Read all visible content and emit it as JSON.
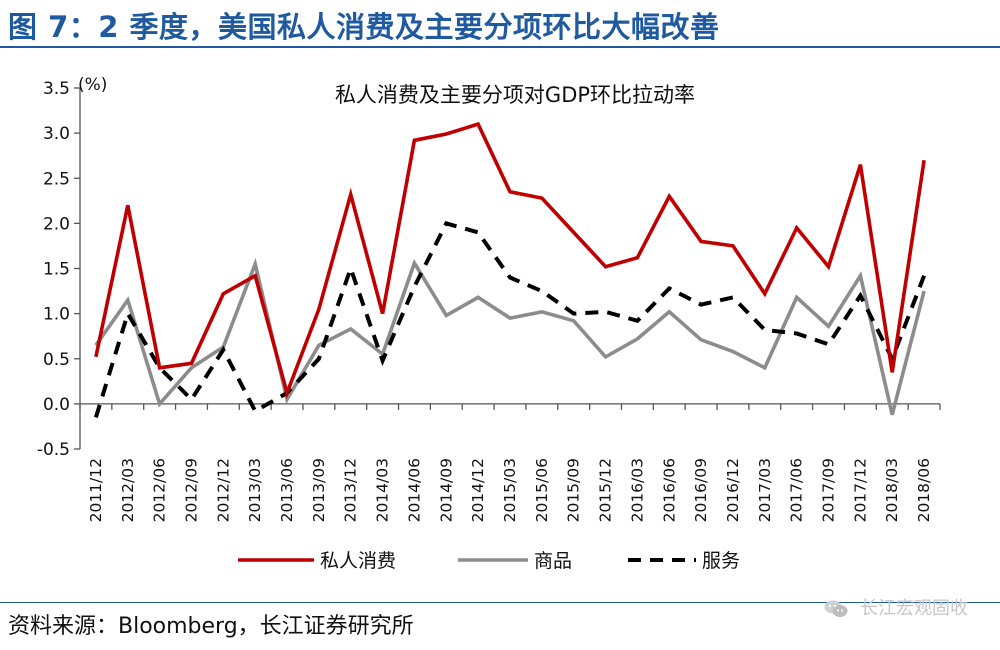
{
  "header": {
    "title": "图 7：2 季度，美国私人消费及主要分项环比大幅改善"
  },
  "footer": {
    "source": "资料来源：Bloomberg，长江证券研究所",
    "watermark": "长江宏观固收"
  },
  "colors": {
    "brand": "#1f5aa0",
    "consumption": "#c00000",
    "goods": "#8c8c8c",
    "services": "#000000"
  },
  "chart_data": {
    "type": "line",
    "title": "私人消费及主要分项对GDP环比拉动率",
    "ylabel": "(%)",
    "xlabel": "",
    "ylim": [
      -0.5,
      3.5
    ],
    "yticks": [
      "3.5",
      "3.0",
      "2.5",
      "2.0",
      "1.5",
      "1.0",
      "0.5",
      "0.0",
      "-0.5"
    ],
    "ytick_values": [
      3.5,
      3.0,
      2.5,
      2.0,
      1.5,
      1.0,
      0.5,
      0.0,
      -0.5
    ],
    "grid": false,
    "legend_position": "bottom",
    "x": [
      "2011/12",
      "2012/03",
      "2012/06",
      "2012/09",
      "2012/12",
      "2013/03",
      "2013/06",
      "2013/09",
      "2013/12",
      "2014/03",
      "2014/06",
      "2014/09",
      "2014/12",
      "2015/03",
      "2015/06",
      "2015/09",
      "2015/12",
      "2016/03",
      "2016/06",
      "2016/09",
      "2016/12",
      "2017/03",
      "2017/06",
      "2017/09",
      "2017/12",
      "2018/03",
      "2018/06"
    ],
    "series": [
      {
        "name": "私人消费",
        "style": "solid",
        "color": "#c00000",
        "values": [
          0.52,
          2.2,
          0.4,
          0.45,
          1.22,
          1.42,
          0.12,
          1.05,
          2.32,
          1.0,
          2.92,
          2.99,
          3.1,
          2.35,
          2.28,
          1.9,
          1.52,
          1.62,
          2.3,
          1.8,
          1.75,
          1.22,
          1.95,
          1.52,
          2.65,
          0.35,
          2.7
        ]
      },
      {
        "name": "商品",
        "style": "solid",
        "color": "#8c8c8c",
        "values": [
          0.65,
          1.15,
          0.0,
          0.4,
          0.63,
          1.55,
          0.05,
          0.65,
          0.83,
          0.55,
          1.56,
          0.98,
          1.18,
          0.95,
          1.02,
          0.92,
          0.52,
          0.72,
          1.02,
          0.71,
          0.58,
          0.4,
          1.18,
          0.86,
          1.42,
          -0.12,
          1.25
        ]
      },
      {
        "name": "服务",
        "style": "dashed",
        "color": "#000000",
        "values": [
          -0.15,
          1.0,
          0.4,
          0.05,
          0.6,
          -0.08,
          0.12,
          0.5,
          1.5,
          0.48,
          1.3,
          2.0,
          1.9,
          1.4,
          1.25,
          1.0,
          1.02,
          0.92,
          1.28,
          1.1,
          1.18,
          0.82,
          0.78,
          0.66,
          1.2,
          0.5,
          1.42
        ]
      }
    ]
  }
}
